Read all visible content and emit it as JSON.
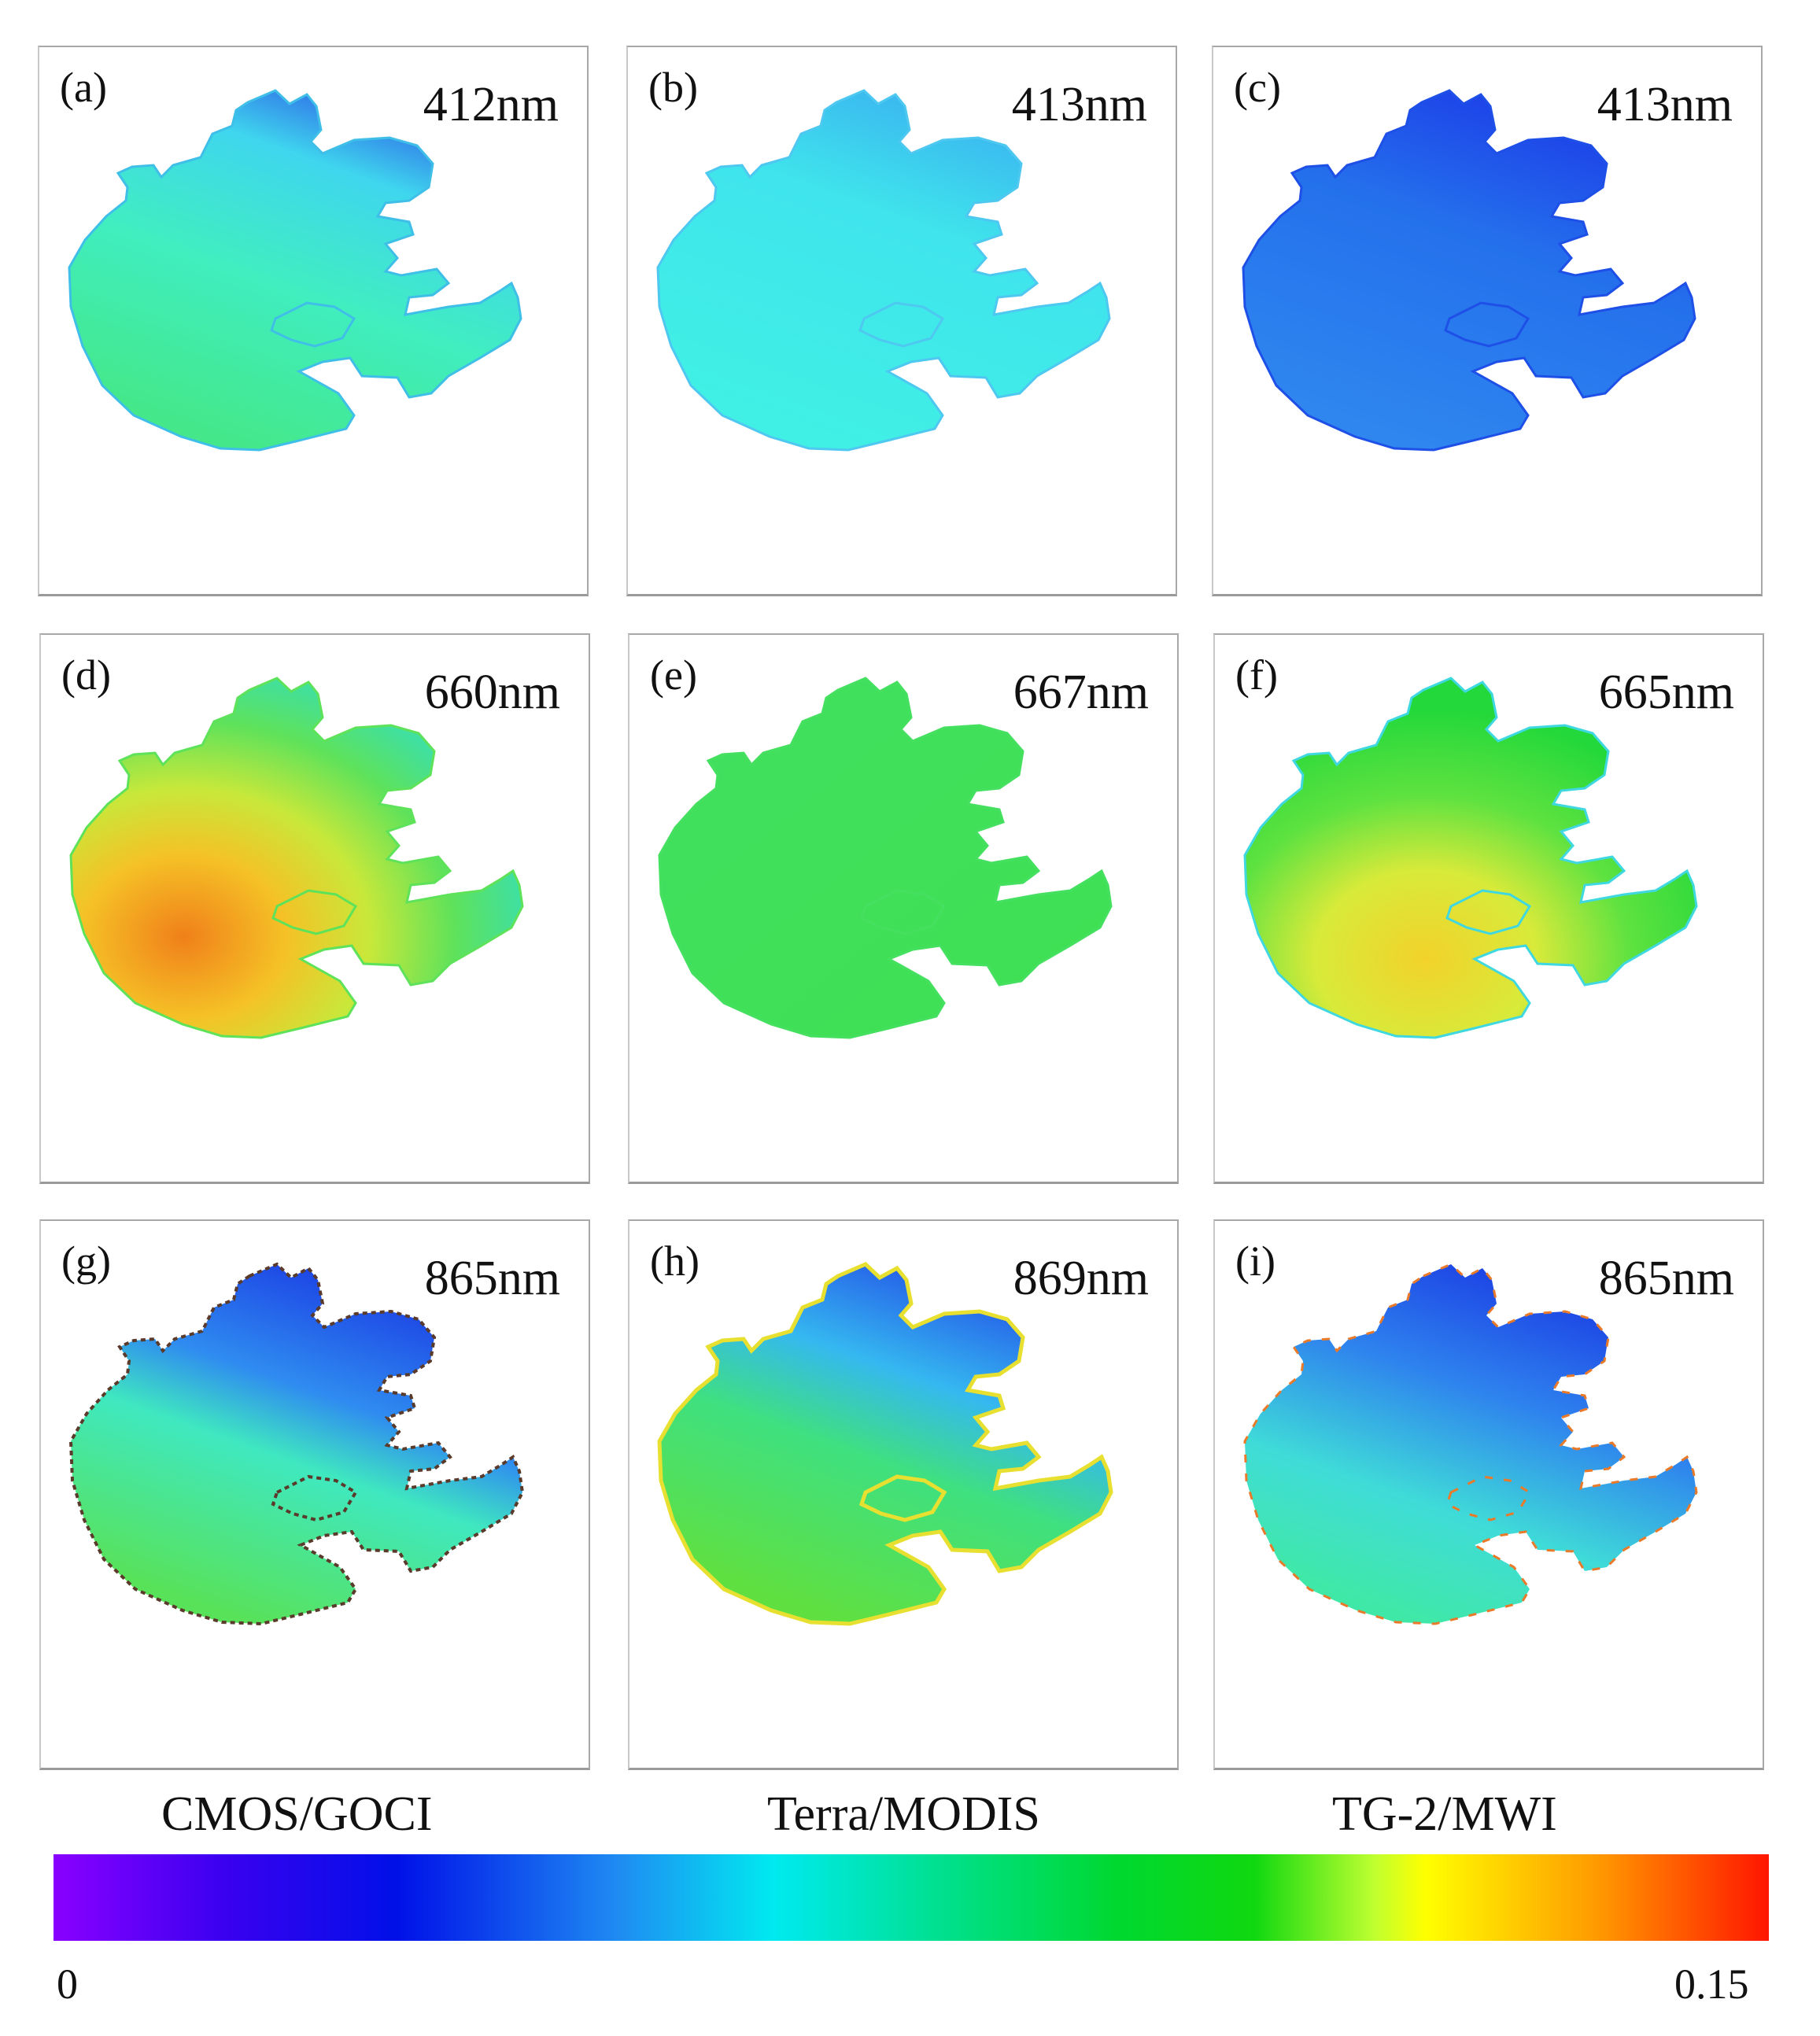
{
  "panels": [
    {
      "label": "(a)",
      "wavelength": "412nm",
      "sensor": "CMOS/GOCI"
    },
    {
      "label": "(b)",
      "wavelength": "413nm",
      "sensor": "Terra/MODIS"
    },
    {
      "label": "(c)",
      "wavelength": "413nm",
      "sensor": "TG-2/MWI"
    },
    {
      "label": "(d)",
      "wavelength": "660nm",
      "sensor": "CMOS/GOCI"
    },
    {
      "label": "(e)",
      "wavelength": "667nm",
      "sensor": "Terra/MODIS"
    },
    {
      "label": "(f)",
      "wavelength": "665nm",
      "sensor": "TG-2/MWI"
    },
    {
      "label": "(g)",
      "wavelength": "865nm",
      "sensor": "CMOS/GOCI"
    },
    {
      "label": "(h)",
      "wavelength": "869nm",
      "sensor": "Terra/MODIS"
    },
    {
      "label": "(i)",
      "wavelength": "865nm",
      "sensor": "TG-2/MWI"
    }
  ],
  "sensors": {
    "col1": "CMOS/GOCI",
    "col2": "Terra/MODIS",
    "col3": "TG-2/MWI"
  },
  "colorbar": {
    "min_label": "0",
    "max_label": "0.15",
    "min": 0,
    "max": 0.15,
    "colors": [
      "#8000ff",
      "#0000e6",
      "#00e6ee",
      "#00dc20",
      "#ffff00",
      "#ff0000"
    ]
  },
  "colors": {
    "violet": "#7a10f0",
    "blue": "#1f4be8",
    "light_blue": "#3aa8f5",
    "cyan": "#3fe8e6",
    "cyan_green": "#3ff0c8",
    "green": "#3fe45a",
    "yellow_green": "#b6e83a",
    "yellow": "#f2e028",
    "orange": "#f39a1a",
    "red": "#e53010",
    "dark": "#333333"
  }
}
